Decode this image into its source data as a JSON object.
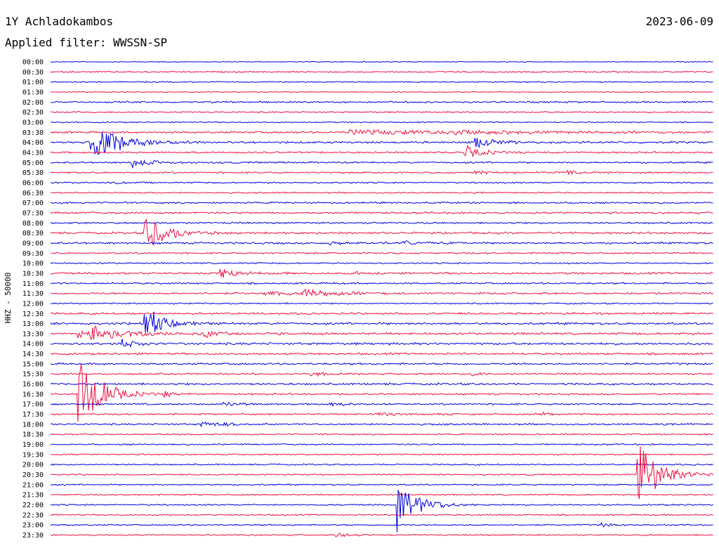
{
  "header": {
    "station": "1Y Achladokambos",
    "date": "2023-06-09",
    "filter": "Applied filter: WWSSN-SP"
  },
  "chart_data": {
    "type": "line",
    "ylabel": "HHZ - 50000",
    "row_labels": [
      "00:00",
      "00:30",
      "01:00",
      "01:30",
      "02:00",
      "02:30",
      "03:00",
      "03:30",
      "04:00",
      "04:30",
      "05:00",
      "05:30",
      "06:00",
      "06:30",
      "07:00",
      "07:30",
      "08:00",
      "08:30",
      "09:00",
      "09:30",
      "10:00",
      "10:30",
      "11:00",
      "11:30",
      "12:00",
      "12:30",
      "13:00",
      "13:30",
      "14:00",
      "14:30",
      "15:00",
      "15:30",
      "16:00",
      "16:30",
      "17:00",
      "17:30",
      "18:00",
      "18:30",
      "19:00",
      "19:30",
      "20:00",
      "20:30",
      "21:00",
      "21:30",
      "22:00",
      "22:30",
      "23:00",
      "23:30"
    ],
    "colors": [
      "#0000dd",
      "#ee1144"
    ],
    "noise": [
      0.6,
      1.0,
      0.8,
      0.7,
      1.2,
      1.0,
      0.8,
      1.4,
      1.4,
      1.2,
      1.2,
      1.2,
      1.0,
      1.0,
      1.2,
      1.4,
      1.2,
      1.4,
      1.4,
      1.2,
      1.0,
      1.4,
      1.2,
      1.4,
      1.0,
      1.4,
      1.6,
      1.6,
      1.6,
      1.4,
      1.4,
      1.2,
      1.4,
      1.2,
      1.2,
      1.2,
      1.2,
      1.0,
      1.0,
      1.0,
      1.0,
      1.0,
      1.0,
      1.0,
      1.0,
      1.0,
      1.0,
      1.0
    ],
    "events": [
      {
        "row": 7,
        "t": 0.45,
        "amp": 3,
        "dur": 0.25
      },
      {
        "row": 7,
        "t": 0.61,
        "amp": 3,
        "dur": 0.05
      },
      {
        "row": 8,
        "t": 0.06,
        "amp": 34,
        "dur": 0.04
      },
      {
        "row": 8,
        "t": 0.64,
        "amp": 9,
        "dur": 0.03
      },
      {
        "row": 9,
        "t": 0.623,
        "amp": 12,
        "dur": 0.025
      },
      {
        "row": 10,
        "t": 0.122,
        "amp": 9,
        "dur": 0.025
      },
      {
        "row": 11,
        "t": 0.64,
        "amp": 3,
        "dur": 0.02
      },
      {
        "row": 11,
        "t": 0.78,
        "amp": 3,
        "dur": 0.02
      },
      {
        "row": 12,
        "t": 0.095,
        "amp": 3,
        "dur": 0.01
      },
      {
        "row": 17,
        "t": 0.14,
        "amp": 38,
        "dur": 0.03
      },
      {
        "row": 18,
        "t": 0.42,
        "amp": 3,
        "dur": 0.02
      },
      {
        "row": 18,
        "t": 0.53,
        "amp": 4,
        "dur": 0.02
      },
      {
        "row": 21,
        "t": 0.255,
        "amp": 9,
        "dur": 0.03
      },
      {
        "row": 21,
        "t": 0.46,
        "amp": 3,
        "dur": 0.01
      },
      {
        "row": 23,
        "t": 0.32,
        "amp": 4,
        "dur": 0.04
      },
      {
        "row": 23,
        "t": 0.38,
        "amp": 6,
        "dur": 0.05
      },
      {
        "row": 26,
        "t": 0.14,
        "amp": 32,
        "dur": 0.025
      },
      {
        "row": 27,
        "t": 0.06,
        "amp": 10,
        "dur": 0.06
      },
      {
        "row": 27,
        "t": 0.23,
        "amp": 7,
        "dur": 0.02
      },
      {
        "row": 27,
        "t": 0.04,
        "amp": 6,
        "dur": 0.02
      },
      {
        "row": 28,
        "t": 0.105,
        "amp": 9,
        "dur": 0.02
      },
      {
        "row": 31,
        "t": 0.39,
        "amp": 5,
        "dur": 0.02
      },
      {
        "row": 31,
        "t": 0.635,
        "amp": 5,
        "dur": 0.01
      },
      {
        "row": 33,
        "t": 0.04,
        "amp": 80,
        "dur": 0.03
      },
      {
        "row": 33,
        "t": 0.17,
        "amp": 6,
        "dur": 0.01
      },
      {
        "row": 34,
        "t": 0.26,
        "amp": 6,
        "dur": 0.02
      },
      {
        "row": 34,
        "t": 0.42,
        "amp": 4,
        "dur": 0.02
      },
      {
        "row": 35,
        "t": 0.49,
        "amp": 3,
        "dur": 0.03
      },
      {
        "row": 35,
        "t": 0.74,
        "amp": 3,
        "dur": 0.02
      },
      {
        "row": 36,
        "t": 0.225,
        "amp": 4,
        "dur": 0.04
      },
      {
        "row": 41,
        "t": 0.882,
        "amp": 80,
        "dur": 0.03
      },
      {
        "row": 44,
        "t": 0.522,
        "amp": 48,
        "dur": 0.03
      },
      {
        "row": 46,
        "t": 0.83,
        "amp": 4,
        "dur": 0.02
      },
      {
        "row": 47,
        "t": 0.43,
        "amp": 4,
        "dur": 0.02
      }
    ]
  }
}
